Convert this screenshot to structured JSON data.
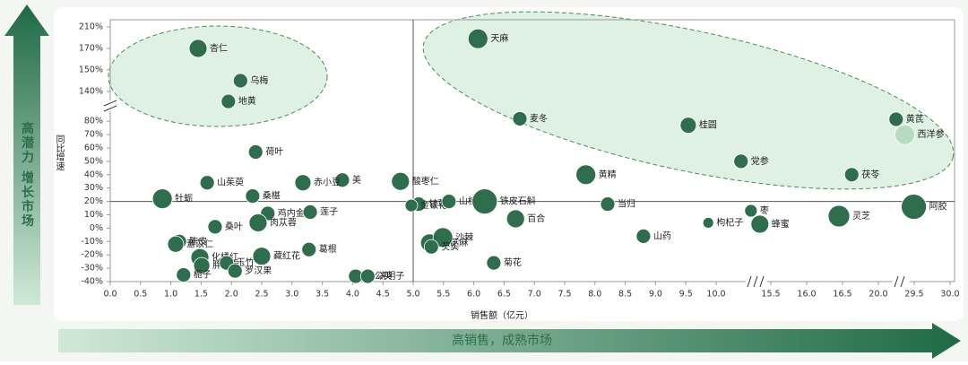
{
  "chart_data": {
    "type": "bubble",
    "title": "高潜力 增长市场",
    "subtitle": "高销售，成熟市场",
    "x_label": "销售额（亿元）",
    "y_label": "同比增速",
    "color": "#2f6e4c",
    "reference_lines": {
      "x": 5,
      "y": 20
    },
    "xticks": [
      {
        "value": 0,
        "label": "0.0"
      },
      {
        "value": 0.5,
        "label": "0.5"
      },
      {
        "value": 1,
        "label": "1.0"
      },
      {
        "value": 1.5,
        "label": "1.5"
      },
      {
        "value": 2,
        "label": "2.0"
      },
      {
        "value": 2.5,
        "label": "2.5"
      },
      {
        "value": 3,
        "label": "3.0"
      },
      {
        "value": 3.5,
        "label": "3.5"
      },
      {
        "value": 4,
        "label": "4.0"
      },
      {
        "value": 4.5,
        "label": "4.5"
      },
      {
        "value": 5,
        "label": "5.0"
      },
      {
        "value": 5.5,
        "label": "5.5"
      },
      {
        "value": 6,
        "label": "6.0"
      },
      {
        "value": 6.5,
        "label": "6.5"
      },
      {
        "value": 7,
        "label": "7.0"
      },
      {
        "value": 7.5,
        "label": "7.5"
      },
      {
        "value": 8,
        "label": "8.0"
      },
      {
        "value": 8.5,
        "label": "8.5"
      },
      {
        "value": 9,
        "label": "9.0"
      },
      {
        "value": 9.5,
        "label": "9.5"
      },
      {
        "value": 10,
        "label": "10.0"
      },
      {
        "value": 15.5,
        "label": "15.5"
      },
      {
        "value": 16,
        "label": "16.0"
      },
      {
        "value": 16.5,
        "label": "16.5"
      },
      {
        "value": 20,
        "label": "20.0"
      },
      {
        "value": 29.5,
        "label": "29.5"
      },
      {
        "value": 30,
        "label": "30.0"
      }
    ],
    "yticks": [
      {
        "value": -40,
        "label": "-40%"
      },
      {
        "value": -30,
        "label": "-30%"
      },
      {
        "value": -20,
        "label": "-20%"
      },
      {
        "value": -10,
        "label": "-10%"
      },
      {
        "value": 0,
        "label": "0%"
      },
      {
        "value": 10,
        "label": "10%"
      },
      {
        "value": 20,
        "label": "20%"
      },
      {
        "value": 30,
        "label": "30%"
      },
      {
        "value": 40,
        "label": "40%"
      },
      {
        "value": 50,
        "label": "50%"
      },
      {
        "value": 60,
        "label": "60%"
      },
      {
        "value": 70,
        "label": "70%"
      },
      {
        "value": 80,
        "label": "80%"
      },
      {
        "value": 140,
        "label": "140%"
      },
      {
        "value": 150,
        "label": "150%"
      },
      {
        "value": 170,
        "label": "170%"
      },
      {
        "value": 210,
        "label": "210%"
      }
    ],
    "xlim": [
      0,
      30
    ],
    "ylim": [
      -40,
      210
    ],
    "points": [
      {
        "name": "杏仁",
        "x": 1.45,
        "y": 170,
        "size": 10,
        "color": "#2f6e4c"
      },
      {
        "name": "乌梅",
        "x": 2.15,
        "y": 145,
        "size": 8,
        "color": "#2f6e4c"
      },
      {
        "name": "地黄",
        "x": 1.95,
        "y": 120,
        "size": 8,
        "color": "#2f6e4c"
      },
      {
        "name": "天麻",
        "x": 6.07,
        "y": 188,
        "size": 11,
        "color": "#2f6e4c"
      },
      {
        "name": "麦冬",
        "x": 6.76,
        "y": 85,
        "size": 8,
        "color": "#2f6e4c"
      },
      {
        "name": "桂圆",
        "x": 9.54,
        "y": 77,
        "size": 9,
        "color": "#2f6e4c"
      },
      {
        "name": "黄芪",
        "x": 24.7,
        "y": 84,
        "size": 8,
        "color": "#2f6e4c"
      },
      {
        "name": "西洋参",
        "x": 27,
        "y": 70,
        "size": 11,
        "color": "#b5dcc0"
      },
      {
        "name": "党参",
        "x": 12.5,
        "y": 50,
        "size": 8,
        "color": "#2f6e4c"
      },
      {
        "name": "茯苓",
        "x": 17.4,
        "y": 40,
        "size": 8,
        "color": "#2f6e4c"
      },
      {
        "name": "黄精",
        "x": 7.85,
        "y": 40,
        "size": 11,
        "color": "#2f6e4c"
      },
      {
        "name": "酸枣仁",
        "x": 4.79,
        "y": 35,
        "size": 10,
        "color": "#2f6e4c"
      },
      {
        "name": "美",
        "x": 3.83,
        "y": 36,
        "size": 8,
        "color": "#2f6e4c"
      },
      {
        "name": "赤小豆",
        "x": 3.18,
        "y": 34,
        "size": 9,
        "color": "#2f6e4c"
      },
      {
        "name": "荷叶",
        "x": 2.4,
        "y": 57,
        "size": 8,
        "color": "#2f6e4c"
      },
      {
        "name": "山茱萸",
        "x": 1.6,
        "y": 34,
        "size": 8,
        "color": "#2f6e4c"
      },
      {
        "name": "牡蛎",
        "x": 0.86,
        "y": 22,
        "size": 11,
        "color": "#2f6e4c"
      },
      {
        "name": "桑椹",
        "x": 2.35,
        "y": 24,
        "size": 8,
        "color": "#2f6e4c"
      },
      {
        "name": "甘草",
        "x": 5.09,
        "y": 18,
        "size": 8,
        "color": "#2f6e4c"
      },
      {
        "name": "金银花",
        "x": 4.97,
        "y": 17,
        "size": 7,
        "color": "#2f6e4c"
      },
      {
        "name": "山楂",
        "x": 5.59,
        "y": 20,
        "size": 8,
        "color": "#2f6e4c"
      },
      {
        "name": "铁皮石斛",
        "x": 6.18,
        "y": 20,
        "size": 14,
        "color": "#2f6e4c"
      },
      {
        "name": "百合",
        "x": 6.69,
        "y": 7,
        "size": 10,
        "color": "#2f6e4c"
      },
      {
        "name": "当归",
        "x": 8.21,
        "y": 18,
        "size": 8,
        "color": "#2f6e4c"
      },
      {
        "name": "山药",
        "x": 8.8,
        "y": -6,
        "size": 8,
        "color": "#2f6e4c"
      },
      {
        "name": "枸杞子",
        "x": 9.87,
        "y": 4,
        "size": 6,
        "color": "#2f6e4c"
      },
      {
        "name": "枣",
        "x": 13.5,
        "y": 13,
        "size": 7,
        "color": "#2f6e4c"
      },
      {
        "name": "蜂蜜",
        "x": 14.4,
        "y": 3,
        "size": 10,
        "color": "#2f6e4c"
      },
      {
        "name": "灵芝",
        "x": 16.45,
        "y": 9,
        "size": 12,
        "color": "#2f6e4c"
      },
      {
        "name": "阿胶",
        "x": 29.4,
        "y": 16,
        "size": 14,
        "color": "#2f6e4c"
      },
      {
        "name": "鸡内金",
        "x": 2.6,
        "y": 11,
        "size": 8,
        "color": "#2f6e4c"
      },
      {
        "name": "肉苁蓉",
        "x": 2.44,
        "y": 4,
        "size": 10,
        "color": "#2f6e4c"
      },
      {
        "name": "桑叶",
        "x": 1.73,
        "y": 1,
        "size": 8,
        "color": "#2f6e4c"
      },
      {
        "name": "莲子",
        "x": 3.3,
        "y": 12,
        "size": 8,
        "color": "#2f6e4c"
      },
      {
        "name": "陈皮",
        "x": 1.14,
        "y": -10,
        "size": 8,
        "color": "#2f6e4c"
      },
      {
        "name": "薏苡仁",
        "x": 1.08,
        "y": -12,
        "size": 9,
        "color": "#2f6e4c"
      },
      {
        "name": "化橘红",
        "x": 1.48,
        "y": -22,
        "size": 10,
        "color": "#2f6e4c"
      },
      {
        "name": "胖大海",
        "x": 1.51,
        "y": -28,
        "size": 9,
        "color": "#2f6e4c"
      },
      {
        "name": "栀子",
        "x": 1.21,
        "y": -35,
        "size": 8,
        "color": "#2f6e4c"
      },
      {
        "name": "玉竹",
        "x": 1.92,
        "y": -26,
        "size": 8,
        "color": "#2f6e4c"
      },
      {
        "name": "罗汉果",
        "x": 2.06,
        "y": -32,
        "size": 8,
        "color": "#2f6e4c"
      },
      {
        "name": "藏红花",
        "x": 2.5,
        "y": -21,
        "size": 10,
        "color": "#2f6e4c"
      },
      {
        "name": "葛根",
        "x": 3.28,
        "y": -16,
        "size": 8,
        "color": "#2f6e4c"
      },
      {
        "name": "蒲公英",
        "x": 4.05,
        "y": -36,
        "size": 8,
        "color": "#2f6e4c"
      },
      {
        "name": "决明子",
        "x": 4.25,
        "y": -36,
        "size": 8,
        "color": "#2f6e4c"
      },
      {
        "name": "黑芝麻",
        "x": 5.27,
        "y": -11,
        "size": 10,
        "color": "#2f6e4c"
      },
      {
        "name": "沙棘",
        "x": 5.49,
        "y": -7,
        "size": 11,
        "color": "#2f6e4c"
      },
      {
        "name": "芡实",
        "x": 5.3,
        "y": -14,
        "size": 8,
        "color": "#2f6e4c"
      },
      {
        "name": "菊花",
        "x": 6.33,
        "y": -26,
        "size": 8,
        "color": "#2f6e4c"
      }
    ]
  }
}
